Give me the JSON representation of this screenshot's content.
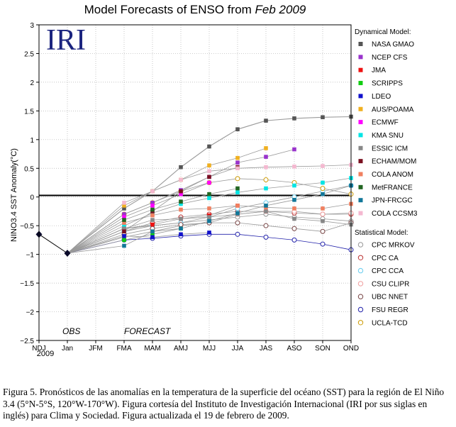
{
  "chart_data": {
    "type": "line",
    "title_main": "Model Forecasts of ENSO from ",
    "title_date": "Feb 2009",
    "logo_text": "IRI",
    "ylabel": "NINO3.4 SST Anomaly(°C)",
    "ylim": [
      -2.5,
      3
    ],
    "yticks": [
      "3",
      "2.5",
      "2",
      "1.5",
      "1",
      "0.5",
      "0",
      "−0.5",
      "−1",
      "−1.5",
      "−2",
      "−2.5"
    ],
    "categories": [
      "NDJ",
      "Jan",
      "JFM",
      "FMA",
      "MAM",
      "AMJ",
      "MJJ",
      "JJA",
      "JAS",
      "ASO",
      "SON",
      "OND"
    ],
    "year_label": "2009",
    "obs_label": "OBS",
    "forecast_label": "FORECAST",
    "observed": [
      -0.65,
      -0.98
    ],
    "legend_dynamical_title": "Dynamical Model:",
    "legend_statistical_title": "Statistical Model:",
    "dynamical": [
      {
        "name": "NASA GMAO",
        "color": "#555555",
        "values": [
          null,
          -0.98,
          null,
          -0.2,
          0.1,
          0.52,
          0.88,
          1.18,
          1.33,
          1.37,
          1.39,
          1.4
        ]
      },
      {
        "name": "NCEP CFS",
        "color": "#9933cc",
        "values": [
          null,
          -0.98,
          null,
          -0.3,
          -0.1,
          0.12,
          0.35,
          0.6,
          0.7,
          0.83,
          null,
          null
        ]
      },
      {
        "name": "JMA",
        "color": "#ee1111",
        "values": [
          null,
          -0.98,
          null,
          -0.55,
          -0.48,
          -0.38,
          -0.32,
          -0.15,
          null,
          null,
          null,
          null
        ]
      },
      {
        "name": "SCRIPPS",
        "color": "#11cc11",
        "values": [
          null,
          -0.98,
          null,
          -0.75,
          -0.65,
          -0.55,
          null,
          null,
          null,
          null,
          null,
          null
        ]
      },
      {
        "name": "LDEO",
        "color": "#1111cc",
        "values": [
          null,
          -0.98,
          null,
          -0.68,
          -0.7,
          -0.65,
          -0.62,
          null,
          null,
          null,
          null,
          null
        ]
      },
      {
        "name": "AUS/POAMA",
        "color": "#f0b020",
        "values": [
          null,
          -0.98,
          null,
          -0.15,
          0.1,
          0.3,
          0.55,
          0.68,
          0.85,
          null,
          null,
          null
        ]
      },
      {
        "name": "ECMWF",
        "color": "#ff00ff",
        "values": [
          null,
          -0.98,
          null,
          -0.35,
          -0.15,
          0.05,
          0.25,
          null,
          null,
          null,
          null,
          null
        ]
      },
      {
        "name": "KMA SNU",
        "color": "#00e5e5",
        "values": [
          null,
          -0.98,
          null,
          -0.5,
          -0.28,
          -0.12,
          -0.02,
          0.08,
          0.15,
          0.2,
          0.25,
          0.33
        ]
      },
      {
        "name": "ESSIC ICM",
        "color": "#888888",
        "values": [
          null,
          -0.98,
          null,
          -0.55,
          -0.4,
          -0.38,
          -0.35,
          -0.3,
          -0.25,
          -0.38,
          -0.42,
          -0.48
        ]
      },
      {
        "name": "ECHAM/MOM",
        "color": "#7a1020",
        "values": [
          null,
          -0.98,
          null,
          -0.6,
          -0.25,
          0.1,
          0.35,
          0.52,
          null,
          null,
          null,
          null
        ]
      },
      {
        "name": "COLA ANOM",
        "color": "#f08060",
        "values": [
          null,
          -0.98,
          null,
          -0.45,
          -0.32,
          -0.22,
          -0.2,
          -0.15,
          -0.18,
          -0.2,
          -0.2,
          -0.12
        ]
      },
      {
        "name": "MetFRANCE",
        "color": "#226622",
        "values": [
          null,
          -0.98,
          null,
          -0.4,
          -0.22,
          -0.08,
          0.05,
          0.15,
          null,
          null,
          null,
          null
        ]
      },
      {
        "name": "JPN-FRCGC",
        "color": "#117799",
        "values": [
          null,
          -0.98,
          null,
          -0.85,
          -0.6,
          -0.55,
          -0.42,
          -0.28,
          -0.15,
          -0.05,
          0.05,
          0.2
        ]
      },
      {
        "name": "COLA CCSM3",
        "color": "#f4b8d0",
        "values": [
          null,
          -0.98,
          null,
          -0.1,
          0.1,
          0.3,
          0.45,
          0.5,
          0.52,
          0.53,
          0.54,
          0.56
        ]
      }
    ],
    "statistical": [
      {
        "name": "CPC MRKOV",
        "color": "#999999",
        "values": [
          null,
          -0.98,
          null,
          -0.55,
          -0.5,
          -0.45,
          -0.4,
          -0.35,
          -0.3,
          -0.35,
          -0.38,
          -0.42
        ]
      },
      {
        "name": "CPC CA",
        "color": "#bb3333",
        "values": [
          null,
          -0.98,
          null,
          -0.6,
          -0.45,
          -0.35,
          -0.3,
          -0.25,
          -0.25,
          -0.28,
          -0.3,
          -0.3
        ]
      },
      {
        "name": "CPC CCA",
        "color": "#66ccee",
        "values": [
          null,
          -0.98,
          null,
          -0.6,
          -0.5,
          -0.45,
          -0.35,
          -0.2,
          -0.1,
          0.0,
          0.1,
          0.2
        ]
      },
      {
        "name": "CSU CLIPR",
        "color": "#f0a0a0",
        "values": [
          null,
          -0.98,
          null,
          -0.7,
          -0.6,
          -0.5,
          -0.45,
          -0.3,
          -0.25,
          -0.25,
          -0.3,
          -0.28
        ]
      },
      {
        "name": "UBC NNET",
        "color": "#774444",
        "values": [
          null,
          -0.98,
          null,
          -0.65,
          -0.55,
          -0.48,
          -0.45,
          -0.45,
          -0.5,
          -0.55,
          -0.6,
          -0.45
        ]
      },
      {
        "name": "FSU REGR",
        "color": "#2222aa",
        "values": [
          null,
          -0.98,
          null,
          -0.75,
          -0.72,
          -0.68,
          -0.65,
          -0.65,
          -0.7,
          -0.75,
          -0.82,
          -0.92
        ]
      },
      {
        "name": "UCLA-TCD",
        "color": "#cc9900",
        "values": [
          null,
          -0.98,
          null,
          -0.3,
          -0.1,
          0.1,
          0.25,
          0.32,
          0.3,
          0.25,
          0.15,
          0.05
        ]
      }
    ]
  },
  "caption": "Figura 5. Pronósticos de las anomalías en la temperatura de la superficie del océano (SST) para la región de El Niño 3.4 (5°N-5°S, 120°W-170°W). Figura cortesía del Instituto de Investigación Internacional (IRI por sus siglas en inglés) para Clima y Sociedad. Figura actualizada el 19 de febrero de 2009."
}
